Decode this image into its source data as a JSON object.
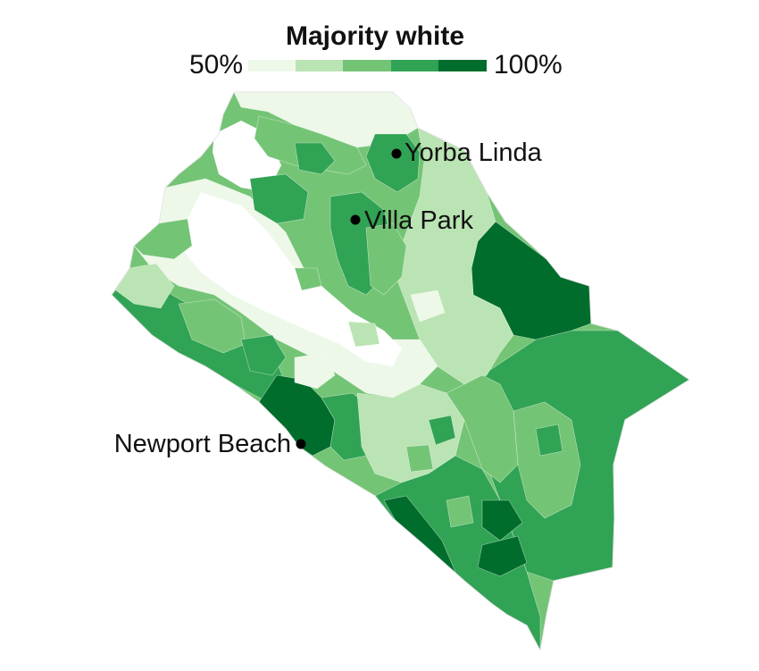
{
  "legend": {
    "title": "Majority white",
    "min_label": "50%",
    "max_label": "100%",
    "bins": [
      {
        "range": "50–60%",
        "color": "#edf8e9"
      },
      {
        "range": "60–70%",
        "color": "#bae4b3"
      },
      {
        "range": "70–80%",
        "color": "#74c476"
      },
      {
        "range": "80–90%",
        "color": "#31a354"
      },
      {
        "range": "90–100%",
        "color": "#006d2c"
      }
    ]
  },
  "places": [
    {
      "id": "yorba-linda",
      "name": "Yorba Linda"
    },
    {
      "id": "villa-park",
      "name": "Villa Park"
    },
    {
      "id": "newport-beach",
      "name": "Newport Beach"
    }
  ],
  "colors": {
    "non_majority": "#ffffff",
    "outline": "#e6e6e6",
    "marker": "#000000"
  }
}
